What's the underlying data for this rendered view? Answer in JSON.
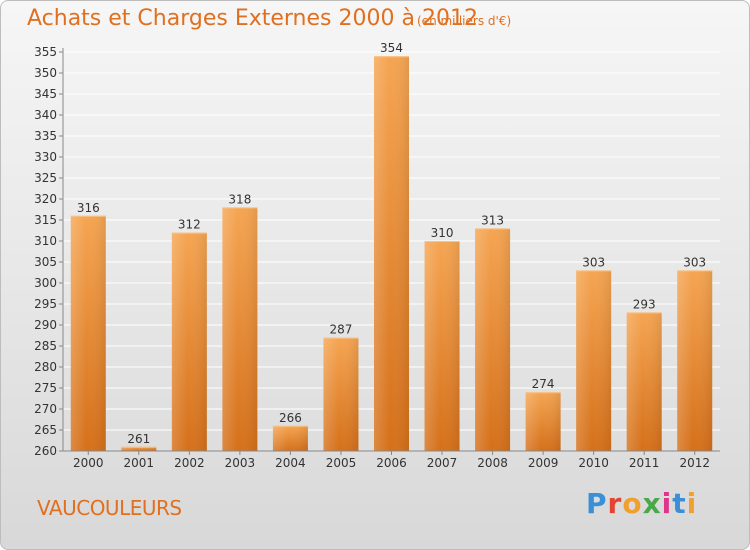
{
  "title": "Achats et Charges Externes 2000 à 2012",
  "subtitle": "(en milliers d'€)",
  "commune": "VAUCOULEURS",
  "logo": {
    "text": "Proxiti",
    "letter_colors": [
      "#3a8fd6",
      "#e4432f",
      "#f0a030",
      "#4aa84a",
      "#e0348a",
      "#3a8fd6",
      "#f0a030"
    ]
  },
  "colors": {
    "accent": "#e07020",
    "bar_top": "#f5a552",
    "bar_bottom": "#d5701a",
    "grid": "#ffffff",
    "axis": "#888888",
    "text": "#333333"
  },
  "chart_data": {
    "type": "bar",
    "categories": [
      "2000",
      "2001",
      "2002",
      "2003",
      "2004",
      "2005",
      "2006",
      "2007",
      "2008",
      "2009",
      "2010",
      "2011",
      "2012"
    ],
    "values": [
      316,
      261,
      312,
      318,
      266,
      287,
      354,
      310,
      313,
      274,
      303,
      293,
      303
    ],
    "ylim": [
      260,
      355
    ],
    "yticks": [
      260,
      265,
      270,
      275,
      280,
      285,
      290,
      295,
      300,
      305,
      310,
      315,
      320,
      325,
      330,
      335,
      340,
      345,
      350,
      355
    ],
    "grid": true,
    "data_labels": true
  }
}
